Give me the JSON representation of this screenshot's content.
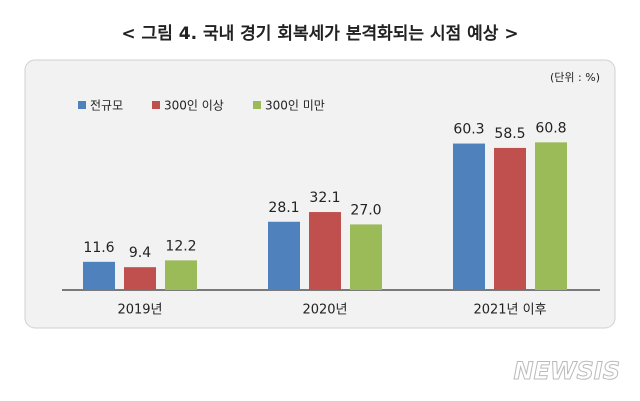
{
  "chart_data": {
    "type": "bar",
    "title": "< 그림 4. 국내 경기 회복세가 본격화되는 시점 예상 >",
    "unit_label": "(단위 : %)",
    "categories": [
      "2019년",
      "2020년",
      "2021년 이후"
    ],
    "series": [
      {
        "name": "전규모",
        "color": "#4f81bd",
        "values": [
          11.6,
          28.1,
          60.3
        ],
        "value_labels": [
          "11.6",
          "28.1",
          "60.3"
        ]
      },
      {
        "name": "300인 이상",
        "color": "#c0504d",
        "values": [
          9.4,
          32.1,
          58.5
        ],
        "value_labels": [
          "9.4",
          "32.1",
          "58.5"
        ]
      },
      {
        "name": "300인 미만",
        "color": "#9bbb59",
        "values": [
          12.2,
          27.0,
          60.8
        ],
        "value_labels": [
          "12.2",
          "27.0",
          "60.8"
        ]
      }
    ],
    "ylim": [
      0,
      70
    ],
    "legend": "top-left",
    "watermark": "NEWSIS"
  }
}
